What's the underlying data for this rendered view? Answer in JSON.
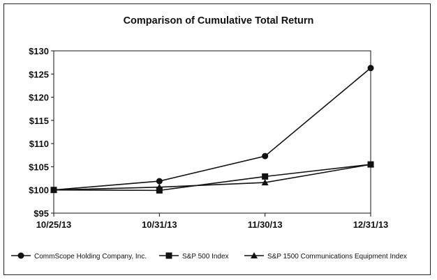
{
  "chart_data": {
    "type": "line",
    "title": "Comparison of Cumulative Total Return",
    "categories": [
      "10/25/13",
      "10/31/13",
      "11/30/13",
      "12/31/13"
    ],
    "y_tick_labels": [
      "$95",
      "$100",
      "$105",
      "$110",
      "$115",
      "$120",
      "$125",
      "$130"
    ],
    "ylim": [
      95,
      130
    ],
    "grid": false,
    "legend_position": "bottom",
    "series": [
      {
        "name": "CommScope Holding Company, Inc.",
        "marker": "circle",
        "values": [
          100,
          101.9,
          107.3,
          126.3
        ]
      },
      {
        "name": "S&P 500 Index",
        "marker": "square",
        "values": [
          100,
          99.9,
          102.9,
          105.5
        ]
      },
      {
        "name": "S&P 1500 Communications Equipment Index",
        "marker": "triangle",
        "values": [
          100,
          100.6,
          101.6,
          105.5
        ]
      }
    ],
    "colors": {
      "line": "#111111",
      "axis": "#111111",
      "frame": "#222222"
    }
  }
}
